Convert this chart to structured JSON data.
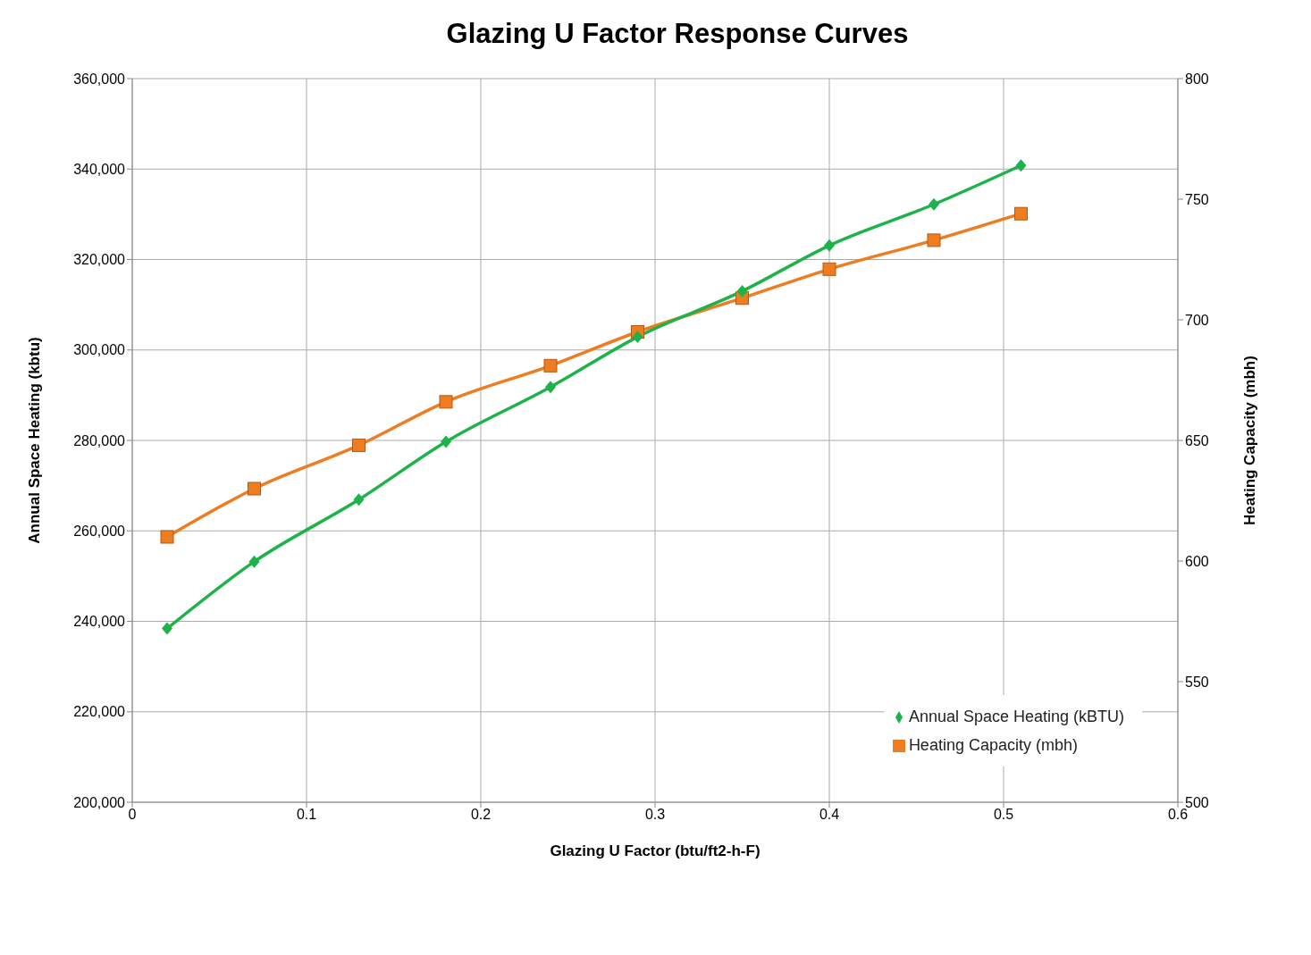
{
  "chart_data": {
    "type": "line",
    "title": "Glazing U Factor Response Curves",
    "xlabel": "Glazing U Factor (btu/ft2-h-F)",
    "ylabel": "Annual Space Heating (kbtu)",
    "y2label": "Heating Capacity (mbh)",
    "x": [
      0.02,
      0.07,
      0.13,
      0.18,
      0.24,
      0.29,
      0.35,
      0.4,
      0.46,
      0.51
    ],
    "series": [
      {
        "name": "Annual Space Heating (kBTU)",
        "color": "#1db34a",
        "marker": "diamond",
        "values": [
          238400,
          253200,
          266900,
          279700,
          291800,
          302900,
          313000,
          323100,
          332200,
          340800
        ]
      },
      {
        "name": "Heating Capacity (mbh)",
        "color": "#ee7d22",
        "marker": "square",
        "axis": "y2",
        "values": [
          610,
          630,
          648,
          666,
          681,
          695,
          709,
          721,
          733,
          744
        ]
      }
    ],
    "xlim": [
      0,
      0.6
    ],
    "xticks": [
      0,
      0.1,
      0.2,
      0.3,
      0.4,
      0.5,
      0.6
    ],
    "ylim": [
      200000,
      360000
    ],
    "yticks": [
      {
        "value": 200000,
        "label": "200,000"
      },
      {
        "value": 220000,
        "label": "220,000"
      },
      {
        "value": 240000,
        "label": "240,000"
      },
      {
        "value": 260000,
        "label": "260,000"
      },
      {
        "value": 280000,
        "label": "280,000"
      },
      {
        "value": 300000,
        "label": "300,000"
      },
      {
        "value": 320000,
        "label": "320,000"
      },
      {
        "value": 340000,
        "label": "340,000"
      },
      {
        "value": 360000,
        "label": "360,000"
      }
    ],
    "y2lim": [
      500,
      800
    ],
    "y2ticks": [
      500,
      550,
      600,
      650,
      700,
      750,
      800
    ],
    "grid": true,
    "legend": "bottom right",
    "line_style": "solid"
  }
}
